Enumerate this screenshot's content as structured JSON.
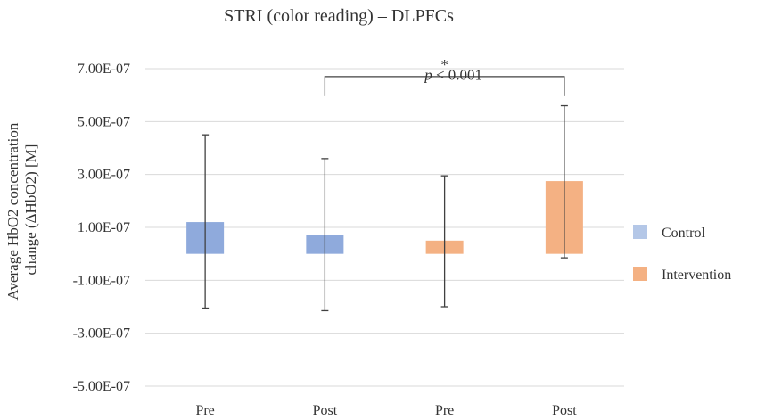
{
  "chart_data": {
    "type": "bar",
    "title": "STRI (color reading) – DLPFCs",
    "ylabel": [
      "Average HbO2 concentration",
      "change (ΔHbO2) [M]"
    ],
    "xlabel": "",
    "ylim": [
      -5e-07,
      7e-07
    ],
    "y_ticks": [
      {
        "value": 7e-07,
        "label": "7.00E-07"
      },
      {
        "value": 5e-07,
        "label": "5.00E-07"
      },
      {
        "value": 3e-07,
        "label": "3.00E-07"
      },
      {
        "value": 1e-07,
        "label": "1.00E-07"
      },
      {
        "value": -1e-07,
        "label": "-1.00E-07"
      },
      {
        "value": -3e-07,
        "label": "-3.00E-07"
      },
      {
        "value": -5e-07,
        "label": "-5.00E-07"
      }
    ],
    "grid": true,
    "legend_position": "right",
    "series": [
      {
        "name": "Control",
        "color": "#8faadc",
        "legend_color": "#b4c7e7"
      },
      {
        "name": "Intervention",
        "color": "#f4b183",
        "legend_color": "#f4b183"
      }
    ],
    "bars": [
      {
        "category": "Pre",
        "series": 0,
        "value": 1.2e-07,
        "err_low": -2.05e-07,
        "err_high": 4.5e-07
      },
      {
        "category": "Post",
        "series": 0,
        "value": 7e-08,
        "err_low": -2.15e-07,
        "err_high": 3.6e-07
      },
      {
        "category": "Pre",
        "series": 1,
        "value": 5e-08,
        "err_low": -2e-07,
        "err_high": 2.95e-07
      },
      {
        "category": "Post",
        "series": 1,
        "value": 2.75e-07,
        "err_low": -1.5e-08,
        "err_high": 5.6e-07
      }
    ],
    "annotations": {
      "significance_marker": "*",
      "p_label_italic": "p",
      "p_label_rest": " < 0.001",
      "bracket_between_bars": [
        1,
        3
      ],
      "bracket_y": 6.7e-07,
      "bracket_drop_y": 5.9e-07
    }
  }
}
